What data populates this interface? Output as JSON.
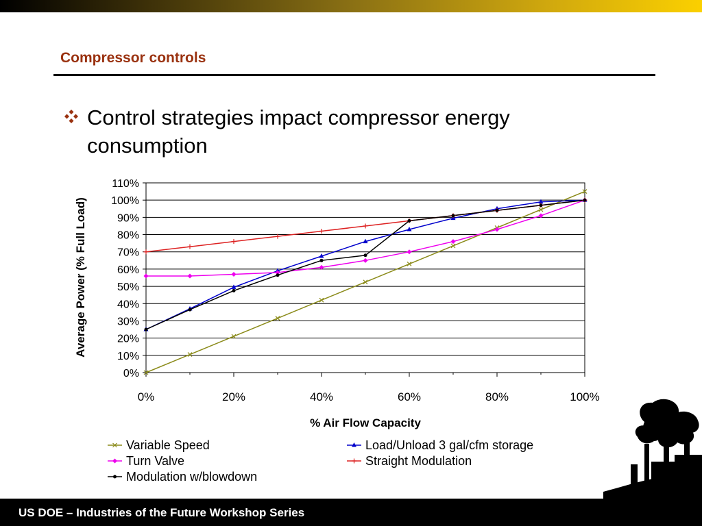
{
  "slide": {
    "title": "Compressor controls",
    "bullet": "Control strategies impact compressor energy consumption",
    "footer": "US DOE – Industries of the Future Workshop Series"
  },
  "colors": {
    "title": "#9a3210",
    "bullet_icon": "#9a3210"
  },
  "icons": {
    "bullet": "diamond-bullet-icon",
    "decor": "smokestack-silhouette"
  },
  "chart_data": {
    "type": "line",
    "title": "",
    "xlabel": "% Air Flow Capacity",
    "ylabel": "Average Power (% Full Load)",
    "xlim": [
      0,
      100
    ],
    "ylim": [
      0,
      110
    ],
    "xticks": [
      0,
      20,
      40,
      60,
      80,
      100
    ],
    "xtick_labels": [
      "0%",
      "20%",
      "40%",
      "60%",
      "80%",
      "100%"
    ],
    "yticks": [
      0,
      10,
      20,
      30,
      40,
      50,
      60,
      70,
      80,
      90,
      100,
      110
    ],
    "ytick_labels": [
      "0%",
      "10%",
      "20%",
      "30%",
      "40%",
      "50%",
      "60%",
      "70%",
      "80%",
      "90%",
      "100%",
      "110%"
    ],
    "grid": "horizontal",
    "legend_position": "bottom",
    "series": [
      {
        "name": "Variable Speed",
        "color": "#8b8b1a",
        "marker": "x",
        "x": [
          0,
          10,
          20,
          30,
          40,
          50,
          60,
          70,
          80,
          90,
          100
        ],
        "y": [
          0,
          10.5,
          21,
          31.5,
          42,
          52.5,
          63,
          73.5,
          84,
          94.5,
          105
        ]
      },
      {
        "name": "Load/Unload 3 gal/cfm storage",
        "color": "#0000cc",
        "marker": "triangle",
        "x": [
          0,
          10,
          20,
          30,
          40,
          50,
          60,
          70,
          80,
          90,
          100
        ],
        "y": [
          25,
          37,
          49.5,
          59,
          67.5,
          76,
          83,
          89.5,
          95,
          99,
          100
        ]
      },
      {
        "name": "Turn Valve",
        "color": "#ee00ee",
        "marker": "diamond",
        "x": [
          0,
          10,
          20,
          30,
          40,
          50,
          60,
          70,
          80,
          90,
          100
        ],
        "y": [
          56,
          56,
          57,
          58,
          61,
          65,
          70,
          76,
          83,
          91,
          100
        ]
      },
      {
        "name": "Straight Modulation",
        "color": "#dd2222",
        "marker": "plus",
        "x": [
          0,
          10,
          20,
          30,
          40,
          50,
          60,
          70,
          80,
          90,
          100
        ],
        "y": [
          70,
          73,
          76,
          79,
          82,
          85,
          88,
          91,
          94,
          97,
          100
        ]
      },
      {
        "name": "Modulation w/blowdown",
        "color": "#000000",
        "marker": "dot",
        "x": [
          0,
          10,
          20,
          30,
          40,
          50,
          60,
          70,
          80,
          90,
          100
        ],
        "y": [
          25,
          36.5,
          47.5,
          56.5,
          65,
          68,
          88,
          91,
          94,
          97,
          100
        ]
      }
    ]
  }
}
